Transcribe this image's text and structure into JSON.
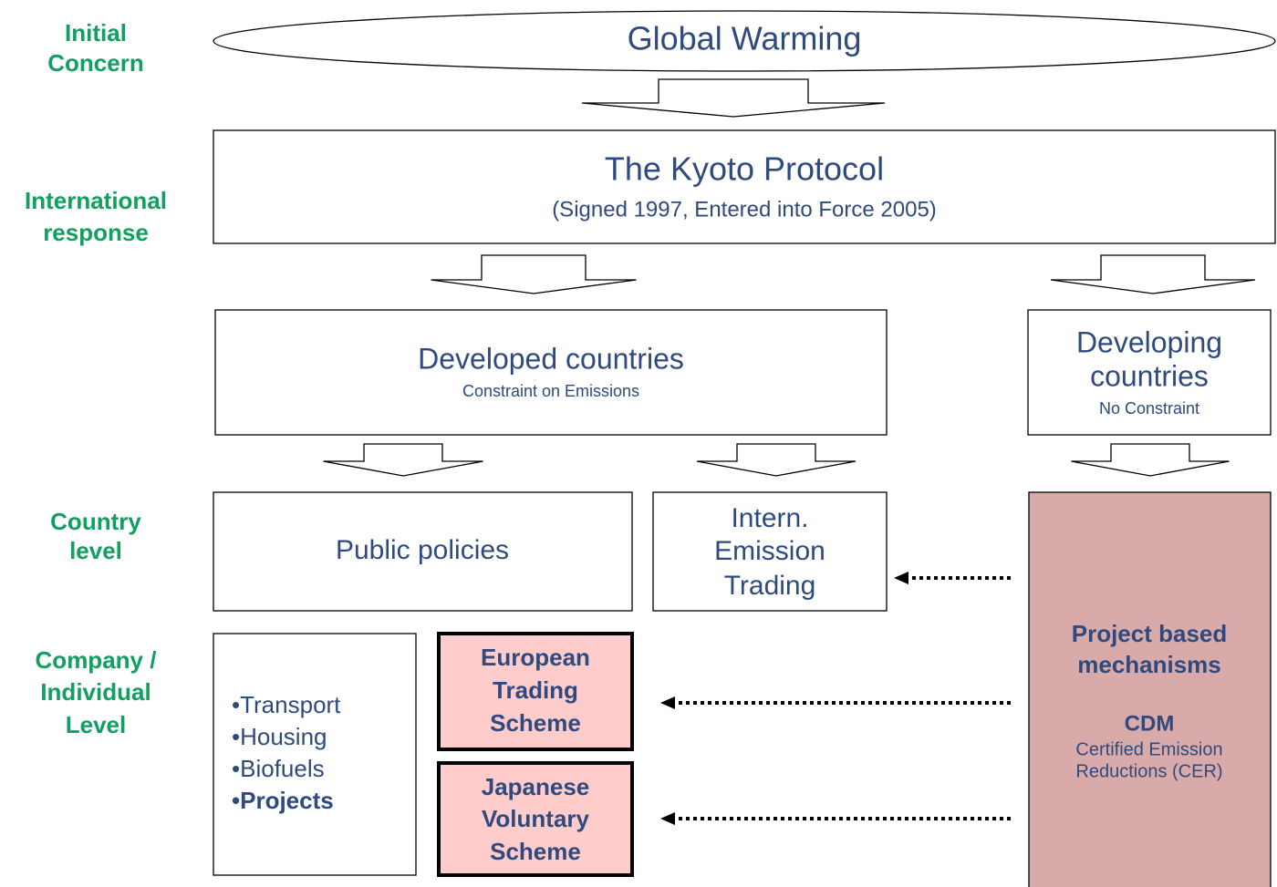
{
  "levels": [
    [
      "Initial",
      "Concern"
    ],
    [
      "International",
      "response"
    ],
    [
      "Country",
      "level"
    ],
    [
      "Company /",
      "Individual",
      "Level"
    ]
  ],
  "nodes": {
    "global_warming": {
      "title": "Global Warming"
    },
    "kyoto": {
      "title": "The Kyoto Protocol",
      "subtitle": "(Signed 1997, Entered into Force 2005)"
    },
    "developed": {
      "title": "Developed countries",
      "subtitle": "Constraint on Emissions"
    },
    "developing": {
      "title": [
        "Developing",
        "countries"
      ],
      "subtitle": "No Constraint"
    },
    "public_policies": {
      "title": "Public policies",
      "items": [
        "Transport",
        "Housing",
        "Biofuels",
        "Projects"
      ]
    },
    "emission_trading": {
      "title": [
        "Intern.",
        "Emission",
        "Trading"
      ]
    },
    "european": {
      "title": [
        "European",
        "Trading",
        "Scheme"
      ]
    },
    "japanese": {
      "title": [
        "Japanese",
        "Voluntary",
        "Scheme"
      ]
    },
    "project_based": {
      "title": [
        "Project based",
        "mechanisms"
      ],
      "subtitle": "CDM",
      "description": [
        "Certified Emission",
        "Reductions (CER)"
      ]
    }
  }
}
